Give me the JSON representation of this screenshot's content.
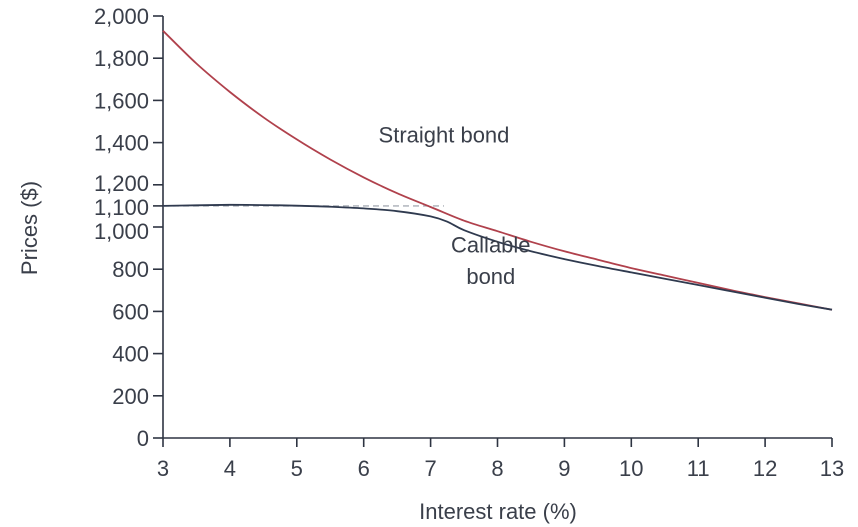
{
  "chart_data": {
    "type": "line",
    "title": "",
    "xlabel": "Interest rate (%)",
    "ylabel": "Prices ($)",
    "xlim": [
      3,
      13
    ],
    "ylim": [
      0,
      2000
    ],
    "x_ticks": [
      3,
      4,
      5,
      6,
      7,
      8,
      9,
      10,
      11,
      12,
      13
    ],
    "x_tick_labels": [
      "3",
      "4",
      "5",
      "6",
      "7",
      "8",
      "9",
      "10",
      "11",
      "12",
      "13"
    ],
    "y_ticks": [
      0,
      200,
      400,
      600,
      800,
      1000,
      1100,
      1200,
      1400,
      1600,
      1800,
      2000
    ],
    "y_tick_labels": [
      "0",
      "200",
      "400",
      "600",
      "800",
      "1,000",
      "1,100",
      "1,200",
      "1,400",
      "1,600",
      "1,800",
      "2,000"
    ],
    "grid": false,
    "legend": "none",
    "reference_line": {
      "y": 1100,
      "x_range": [
        3,
        7.2
      ],
      "style": "dashed",
      "color": "#a9aeb6"
    },
    "series": [
      {
        "color": "#b0414c",
        "x": [
          3,
          3.5,
          4,
          4.5,
          5,
          5.5,
          6,
          6.5,
          7,
          7.5,
          8,
          8.5,
          9,
          9.5,
          10,
          10.5,
          11,
          11.5,
          12,
          12.5,
          13
        ],
        "values": [
          1930,
          1775,
          1640,
          1520,
          1415,
          1320,
          1235,
          1160,
          1095,
          1030,
          980,
          930,
          885,
          845,
          805,
          770,
          735,
          700,
          668,
          638,
          608
        ]
      },
      {
        "color": "#2f3a4f",
        "x": [
          3,
          3.5,
          4,
          4.5,
          5,
          5.5,
          6,
          6.5,
          7,
          7.25,
          7.5,
          8,
          8.5,
          9,
          9.5,
          10,
          10.5,
          11,
          11.5,
          12,
          12.5,
          13
        ],
        "values": [
          1100,
          1103,
          1105,
          1104,
          1101,
          1096,
          1088,
          1075,
          1050,
          1025,
          985,
          930,
          885,
          848,
          815,
          785,
          755,
          725,
          695,
          665,
          635,
          608
        ]
      }
    ],
    "annotations": [
      {
        "text": "Straight bond",
        "x": 7.2,
        "y": 1400
      },
      {
        "text": "Callable",
        "x": 7.9,
        "y": 880
      },
      {
        "text": "bond",
        "x": 7.9,
        "y": 730
      }
    ]
  }
}
